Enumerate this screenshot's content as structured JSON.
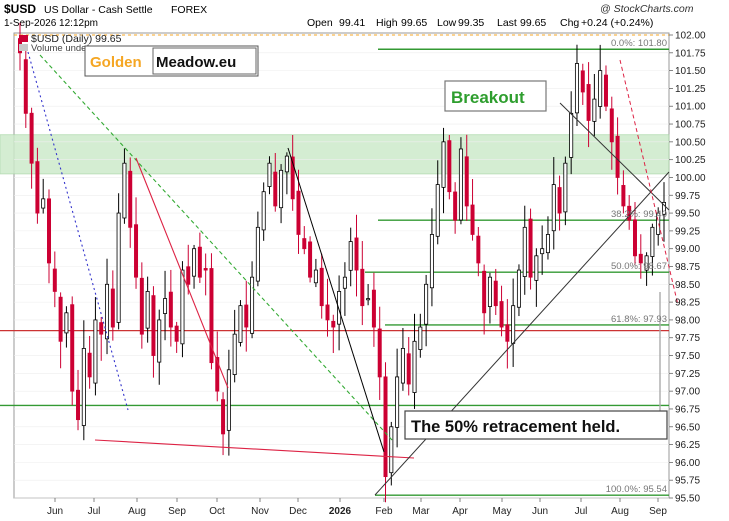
{
  "header": {
    "symbol": "$USD",
    "description": "US Dollar - Cash Settle",
    "exchange": "FOREX",
    "date_line": "1-Sep-2026 12:12pm",
    "open_label": "Open",
    "open_value": "99.41",
    "high_label": "High",
    "high_value": "99.65",
    "low_label": "Low",
    "low_value": "99.35",
    "last_label": "Last",
    "last_value": "99.65",
    "chg_label": "Chg",
    "chg_value": "+0.24 (+0.24%)",
    "watermark": "@ StockCharts.com",
    "legend_line": "$USD (Daily) 99.65",
    "legend_volume": "Volume undef"
  },
  "logo": {
    "part1": "Golden",
    "part2": "Meadow.eu",
    "part1_color": "#f5a623",
    "part2_color": "#111111"
  },
  "annotations": {
    "breakout": "Breakout",
    "retracement": "The 50% retracement held."
  },
  "chart_data": {
    "type": "candlestick",
    "ylim": [
      95.5,
      102.0
    ],
    "y_ticks": [
      "102.00",
      "101.75",
      "101.50",
      "101.25",
      "101.00",
      "100.75",
      "100.50",
      "100.25",
      "100.00",
      "99.75",
      "99.50",
      "99.25",
      "99.00",
      "98.75",
      "98.50",
      "98.25",
      "98.00",
      "97.75",
      "97.50",
      "97.25",
      "97.00",
      "96.75",
      "96.50",
      "96.25",
      "96.00",
      "95.75",
      "95.50"
    ],
    "x_labels": [
      "Jun",
      "Jul",
      "Aug",
      "Sep",
      "Oct",
      "Nov",
      "Dec",
      "2026",
      "Feb",
      "Mar",
      "Apr",
      "May",
      "Jun",
      "Jul",
      "Aug",
      "Sep"
    ],
    "resistance_zone": [
      100.05,
      100.6
    ],
    "fib_levels": [
      {
        "label": "0.0%: 101.80",
        "value": 101.8
      },
      {
        "label": "38.2%: 99.40",
        "value": 99.4
      },
      {
        "label": "50.0%: 98.67",
        "value": 98.67
      },
      {
        "label": "61.8%: 97.93",
        "value": 97.93
      },
      {
        "label": "100.0%: 95.54",
        "value": 95.54
      }
    ],
    "horizontal_levels": [
      97.85,
      96.8
    ],
    "approx_closes": [
      101.75,
      100.9,
      100.2,
      99.5,
      99.7,
      98.8,
      98.4,
      97.7,
      98.1,
      97.0,
      96.6,
      97.6,
      97.2,
      98.0,
      97.8,
      98.5,
      97.9,
      99.5,
      100.2,
      99.3,
      98.6,
      97.8,
      98.4,
      97.5,
      98.0,
      98.3,
      97.9,
      97.7,
      98.7,
      98.5,
      99.0,
      98.6,
      98.7,
      97.4,
      97.0,
      96.4,
      97.3,
      97.8,
      98.2,
      97.9,
      98.6,
      99.3,
      99.8,
      100.2,
      99.6,
      100.1,
      100.3,
      99.7,
      99.2,
      99.0,
      98.6,
      98.7,
      98.2,
      98.0,
      97.9,
      98.4,
      98.6,
      99.1,
      98.7,
      98.2,
      98.3,
      97.9,
      97.2,
      95.8,
      96.5,
      97.2,
      97.6,
      97.1,
      97.7,
      97.9,
      98.5,
      99.2,
      99.9,
      100.5,
      99.8,
      99.4,
      100.4,
      99.6,
      99.2,
      98.8,
      98.1,
      98.6,
      98.2,
      97.9,
      97.7,
      98.2,
      98.7,
      99.3,
      98.6,
      98.9,
      99.0,
      99.2,
      99.9,
      99.5,
      100.2,
      100.9,
      101.6,
      101.2,
      100.8,
      101.1,
      101.5,
      101.0,
      100.5,
      100.0,
      99.6,
      99.4,
      98.9,
      98.8,
      98.9,
      99.3,
      99.5,
      99.65
    ]
  },
  "colors": {
    "candle_up": "#000000",
    "candle_down": "#cc0033",
    "fib_line": "#339933",
    "zone_fill": "#cdeacb",
    "red_level": "#cc3333",
    "red_trend": "#dd2244",
    "green_dashed": "#33aa33",
    "blue_dotted": "#3333cc"
  }
}
